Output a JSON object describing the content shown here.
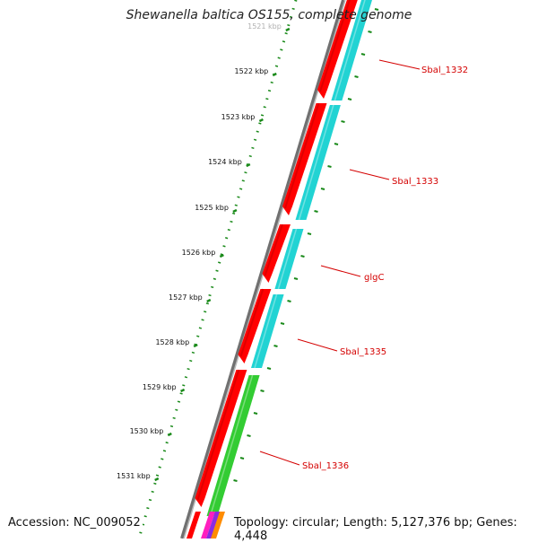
{
  "title": "Shewanella baltica OS155, complete genome",
  "footer": {
    "accession": "Accession: NC_009052",
    "info": "Topology: circular; Length: 5,127,376 bp; Genes: 4,448"
  },
  "ticks": [
    "1521 kbp",
    "1522 kbp",
    "1523 kbp",
    "1524 kbp",
    "1525 kbp",
    "1526 kbp",
    "1527 kbp",
    "1528 kbp",
    "1529 kbp",
    "1530 kbp",
    "1531 kbp"
  ],
  "genes": [
    {
      "name": "Sbal_1332",
      "color": "#ff0000"
    },
    {
      "name": "Sbal_1333",
      "color": "#ff0000"
    },
    {
      "name": "glgC",
      "color": "#ff0000"
    },
    {
      "name": "Sbal_1335",
      "color": "#ff0000"
    },
    {
      "name": "Sbal_1336",
      "color": "#ff0000"
    }
  ],
  "colors": {
    "forward_track": "#ff0000",
    "reverse_track": "#22d3d3",
    "green_feature": "#33cc33",
    "backbone": "#808080",
    "tick_marks": "#1a8a1a",
    "label_lines": "#d40000"
  }
}
